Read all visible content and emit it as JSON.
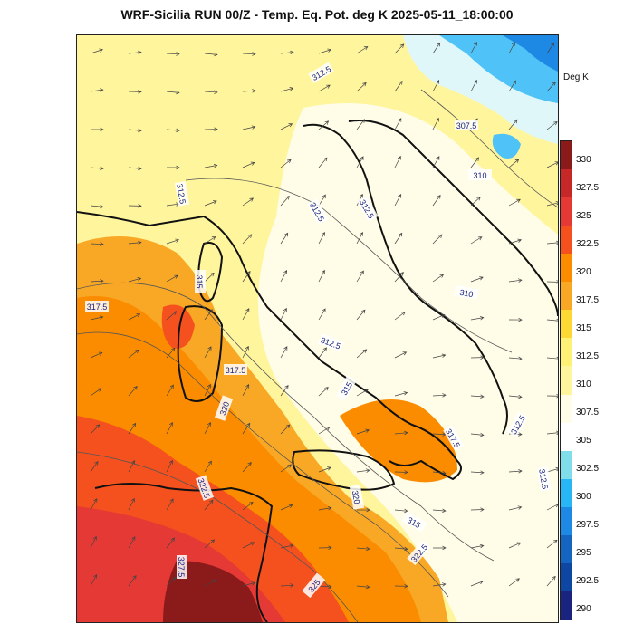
{
  "title": "WRF-Sicilia RUN 00/Z - Temp. Eq. Pot. deg K 2025-05-11_18:00:00",
  "colorbar": {
    "unit": "Deg K",
    "levels": [
      330,
      327.5,
      325,
      322.5,
      320,
      317.5,
      315,
      312.5,
      310,
      307.5,
      305,
      302.5,
      300,
      297.5,
      295,
      292.5,
      290
    ],
    "labels": [
      "330",
      "327.5",
      "325",
      "322.5",
      "320",
      "317.5",
      "315",
      "312.5",
      "310",
      "307.5",
      "305",
      "302.5",
      "300",
      "297.5",
      "295",
      "292.5",
      "290"
    ],
    "colors": [
      "#8b1a1a",
      "#c62828",
      "#e53935",
      "#f4511e",
      "#fb8c00",
      "#f9a825",
      "#fdd835",
      "#fff176",
      "#fff59d",
      "#fffde7",
      "#ffffff",
      "#80deea",
      "#29b6f6",
      "#1e88e5",
      "#1565c0",
      "#0d47a1",
      "#1a237e"
    ]
  },
  "contour_labels": [
    "312.5",
    "307.5",
    "310",
    "312.5",
    "312.5",
    "312.5",
    "315",
    "317.5",
    "312.5",
    "310",
    "317.5",
    "320",
    "315",
    "317.5",
    "312.5",
    "312.5",
    "322.5",
    "320",
    "315",
    "322.5",
    "327.5",
    "325"
  ]
}
